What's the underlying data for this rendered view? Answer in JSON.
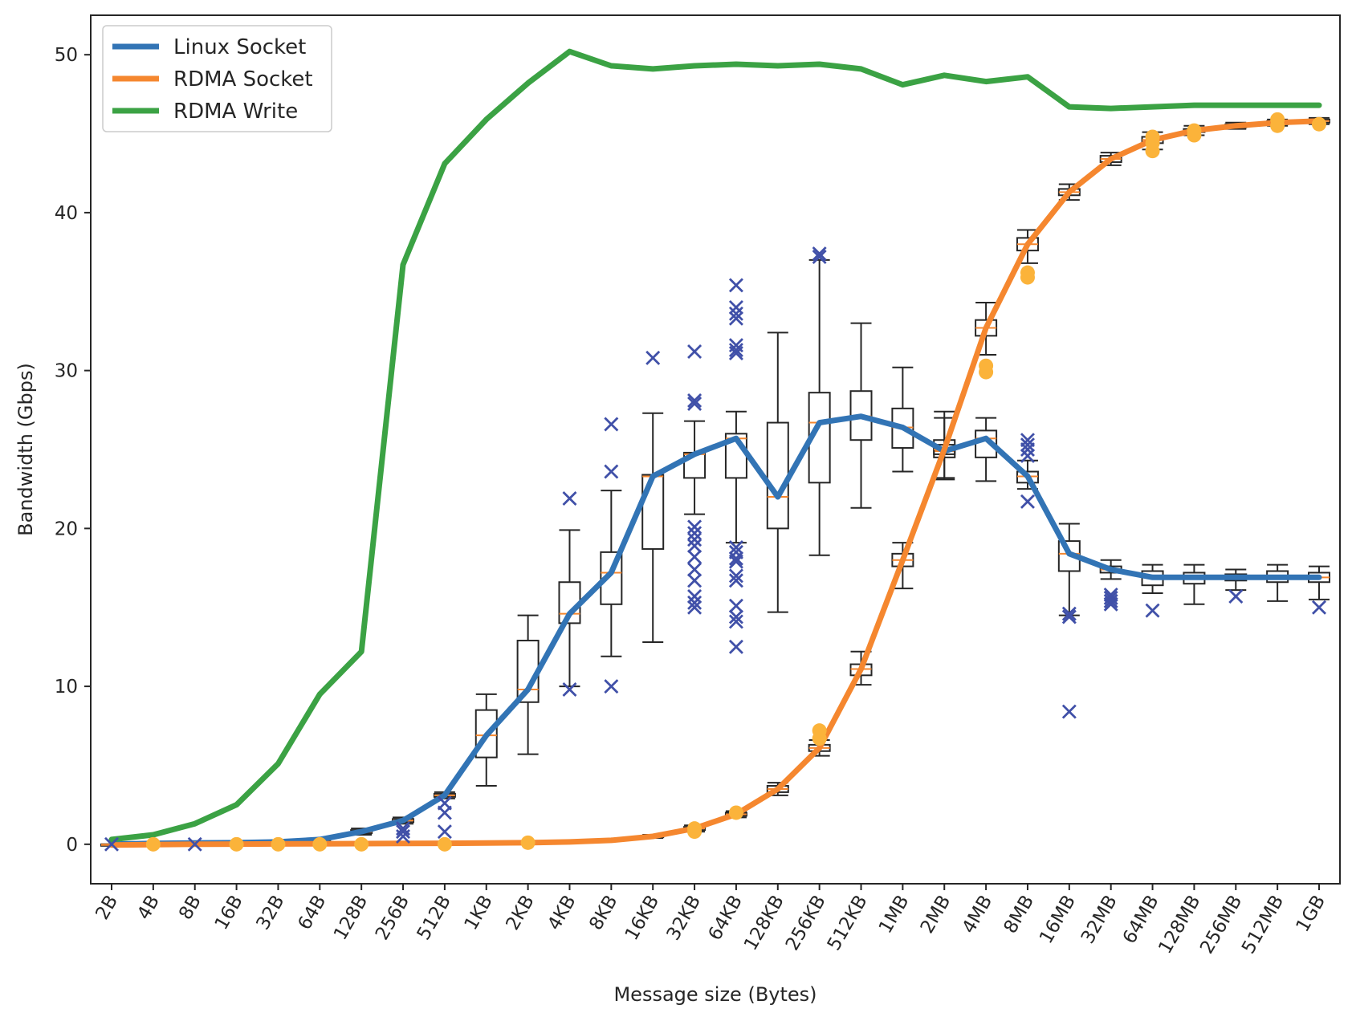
{
  "chart_data": {
    "type": "line",
    "title": "",
    "xlabel": "Message size (Bytes)",
    "ylabel": "Bandwidth (Gbps)",
    "categories": [
      "2B",
      "4B",
      "8B",
      "16B",
      "32B",
      "64B",
      "128B",
      "256B",
      "512B",
      "1KB",
      "2KB",
      "4KB",
      "8KB",
      "16KB",
      "32KB",
      "64KB",
      "128KB",
      "256KB",
      "512KB",
      "1MB",
      "2MB",
      "4MB",
      "8MB",
      "16MB",
      "32MB",
      "64MB",
      "128MB",
      "256MB",
      "512MB",
      "1GB"
    ],
    "ylim": [
      -2.5,
      52.5
    ],
    "yticks": [
      0,
      10,
      20,
      30,
      40,
      50
    ],
    "grid": false,
    "legend": "top-left",
    "series": [
      {
        "name": "Linux Socket",
        "color": "#3274b5",
        "values": [
          0.0,
          0.05,
          0.08,
          0.1,
          0.15,
          0.3,
          0.8,
          1.5,
          3.1,
          6.9,
          9.8,
          14.6,
          17.2,
          23.3,
          24.7,
          25.7,
          22.0,
          26.7,
          27.1,
          26.4,
          24.9,
          25.7,
          23.3,
          18.4,
          17.4,
          16.9,
          16.9,
          16.9,
          16.9,
          16.9
        ],
        "box": {
          "q1": [
            0.0,
            0.05,
            0.08,
            0.1,
            0.15,
            0.3,
            0.7,
            1.4,
            3.0,
            5.5,
            9.0,
            14.0,
            15.2,
            18.7,
            23.2,
            23.2,
            20.0,
            22.9,
            25.6,
            25.1,
            24.5,
            24.5,
            22.9,
            17.3,
            17.2,
            16.4,
            16.5,
            16.7,
            16.6,
            16.6
          ],
          "q3": [
            0.0,
            0.05,
            0.08,
            0.1,
            0.15,
            0.3,
            0.9,
            1.6,
            3.2,
            8.5,
            12.9,
            16.6,
            18.5,
            23.4,
            24.8,
            26.0,
            26.7,
            28.6,
            28.7,
            27.6,
            25.6,
            26.2,
            23.6,
            19.2,
            17.6,
            17.3,
            17.2,
            17.1,
            17.3,
            17.2
          ],
          "whislo": [
            0.0,
            0.05,
            0.08,
            0.1,
            0.15,
            0.3,
            0.6,
            1.3,
            2.9,
            3.7,
            5.7,
            10.0,
            11.9,
            12.8,
            20.9,
            19.1,
            14.7,
            18.3,
            21.3,
            23.6,
            23.1,
            23.0,
            22.5,
            14.5,
            16.8,
            15.9,
            15.2,
            16.1,
            15.4,
            15.5
          ],
          "whishi": [
            0.0,
            0.05,
            0.08,
            0.1,
            0.15,
            0.3,
            1.0,
            1.7,
            3.3,
            9.5,
            14.5,
            19.9,
            22.4,
            27.3,
            26.8,
            27.4,
            32.4,
            37.0,
            33.0,
            30.2,
            27.4,
            27.0,
            24.3,
            20.3,
            18.0,
            17.7,
            17.7,
            17.4,
            17.7,
            17.6
          ],
          "fliers": [
            [
              0.0
            ],
            [],
            [
              0.0
            ],
            [],
            [],
            [],
            [],
            [
              0.5,
              0.8,
              1.0
            ],
            [
              0.8,
              2.0,
              2.6
            ],
            [],
            [],
            [
              9.8,
              21.9
            ],
            [
              10.0,
              23.6,
              26.6
            ],
            [
              30.8
            ],
            [
              15.0,
              15.3,
              15.7,
              16.7,
              17.4,
              18.2,
              18.9,
              19.3,
              19.7,
              20.1,
              27.9,
              28.1,
              31.2
            ],
            [
              12.5,
              14.1,
              14.4,
              15.1,
              16.7,
              17.0,
              17.9,
              18.1,
              18.5,
              18.8,
              31.1,
              31.3,
              31.6,
              33.3,
              33.6,
              34.0,
              35.4
            ],
            [],
            [
              37.2,
              37.4
            ],
            [],
            [],
            [],
            [],
            [
              21.7,
              24.6,
              25.0,
              25.3,
              25.6
            ],
            [
              8.4,
              14.4,
              14.6
            ],
            [
              15.2,
              15.4,
              15.6,
              15.8
            ],
            [
              14.8
            ],
            [],
            [
              15.7
            ],
            [],
            [
              15.0
            ]
          ]
        }
      },
      {
        "name": "RDMA Socket",
        "color": "#f5872f",
        "values": [
          -0.05,
          -0.02,
          0.0,
          0.01,
          0.02,
          0.03,
          0.04,
          0.05,
          0.06,
          0.08,
          0.1,
          0.15,
          0.25,
          0.5,
          1.0,
          1.9,
          3.5,
          6.1,
          11.1,
          18.0,
          25.0,
          32.7,
          38.0,
          41.3,
          43.4,
          44.6,
          45.2,
          45.5,
          45.7,
          45.8
        ],
        "box": {
          "q1": [
            -0.05,
            -0.02,
            0.0,
            0.01,
            0.02,
            0.03,
            0.04,
            0.05,
            0.06,
            0.08,
            0.1,
            0.15,
            0.25,
            0.45,
            0.9,
            1.8,
            3.3,
            5.9,
            10.7,
            17.6,
            24.7,
            32.2,
            37.6,
            41.1,
            43.2,
            44.4,
            45.1,
            45.4,
            45.6,
            45.7
          ],
          "q3": [
            -0.05,
            -0.02,
            0.0,
            0.01,
            0.02,
            0.03,
            0.04,
            0.05,
            0.06,
            0.08,
            0.1,
            0.15,
            0.25,
            0.55,
            1.1,
            2.0,
            3.7,
            6.3,
            11.4,
            18.4,
            25.3,
            33.2,
            38.4,
            41.5,
            43.6,
            44.8,
            45.3,
            45.6,
            45.8,
            45.9
          ],
          "whislo": [
            -0.05,
            -0.02,
            0.0,
            0.01,
            0.02,
            0.03,
            0.04,
            0.05,
            0.06,
            0.08,
            0.1,
            0.15,
            0.25,
            0.4,
            0.8,
            1.7,
            3.1,
            5.6,
            10.1,
            16.2,
            23.2,
            31.0,
            36.8,
            40.8,
            43.0,
            44.0,
            44.9,
            45.3,
            45.5,
            45.6
          ],
          "whishi": [
            -0.05,
            -0.02,
            0.0,
            0.01,
            0.02,
            0.03,
            0.04,
            0.05,
            0.06,
            0.08,
            0.1,
            0.15,
            0.25,
            0.6,
            1.2,
            2.1,
            3.9,
            6.6,
            12.2,
            19.1,
            27.0,
            34.3,
            38.9,
            41.8,
            43.8,
            45.1,
            45.5,
            45.7,
            45.9,
            46.0
          ],
          "fliers": [
            [],
            [
              0.0
            ],
            [],
            [
              0.0
            ],
            [
              0.0
            ],
            [
              0.0
            ],
            [
              0.0
            ],
            [],
            [
              0.0
            ],
            [],
            [
              0.1
            ],
            [],
            [],
            [],
            [
              0.8,
              1.0
            ],
            [
              2.0
            ],
            [],
            [
              6.7,
              7.2
            ],
            [],
            [],
            [],
            [
              29.9,
              30.3
            ],
            [
              35.9,
              36.2
            ],
            [],
            [],
            [
              43.9,
              44.4,
              44.8
            ],
            [
              44.9,
              45.2
            ],
            [],
            [
              45.5,
              45.9
            ],
            [
              45.6
            ]
          ]
        }
      },
      {
        "name": "RDMA Write",
        "color": "#3ba244",
        "values": [
          0.3,
          0.6,
          1.3,
          2.5,
          5.1,
          9.5,
          12.2,
          36.7,
          43.1,
          45.9,
          48.2,
          50.2,
          49.3,
          49.1,
          49.3,
          49.4,
          49.3,
          49.4,
          49.1,
          48.1,
          48.7,
          48.3,
          48.6,
          46.7,
          46.6,
          46.7,
          46.8,
          46.8,
          46.8,
          46.8
        ]
      }
    ]
  }
}
